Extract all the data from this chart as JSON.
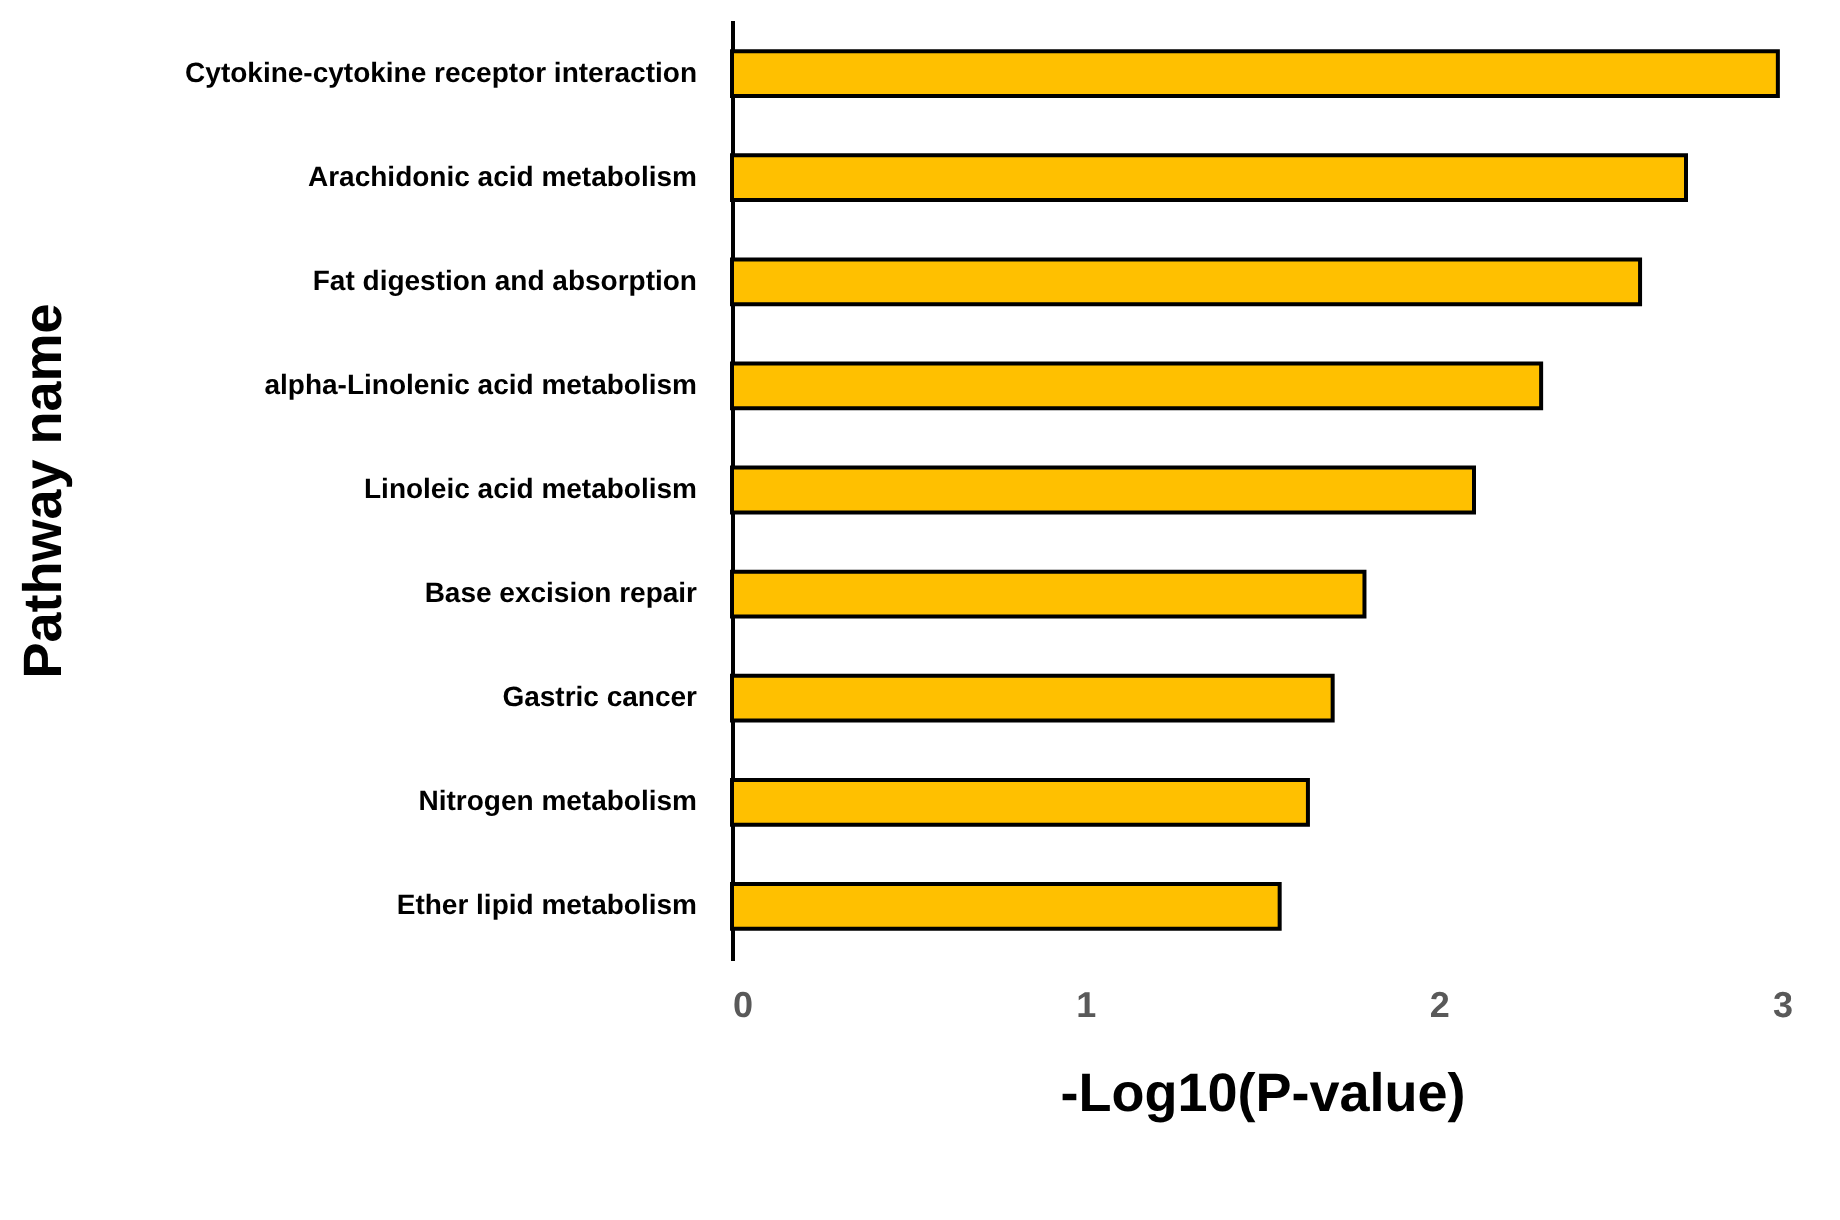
{
  "chart_data": {
    "type": "bar",
    "orientation": "horizontal",
    "xlabel": "-Log10(P-value)",
    "ylabel": "Pathway name",
    "categories": [
      "Cytokine-cytokine receptor interaction",
      "Arachidonic acid metabolism",
      "Fat digestion and absorption",
      "alpha-Linolenic acid metabolism",
      "Linoleic acid metabolism",
      "Base excision repair",
      "Gastric cancer",
      "Nitrogen metabolism",
      "Ether lipid metabolism"
    ],
    "values": [
      2.96,
      2.7,
      2.57,
      2.29,
      2.1,
      1.79,
      1.7,
      1.63,
      1.55
    ],
    "color": "#ffc000",
    "xlim": [
      0,
      3
    ],
    "xticks": [
      0,
      1,
      2,
      3
    ],
    "grid": false
  }
}
